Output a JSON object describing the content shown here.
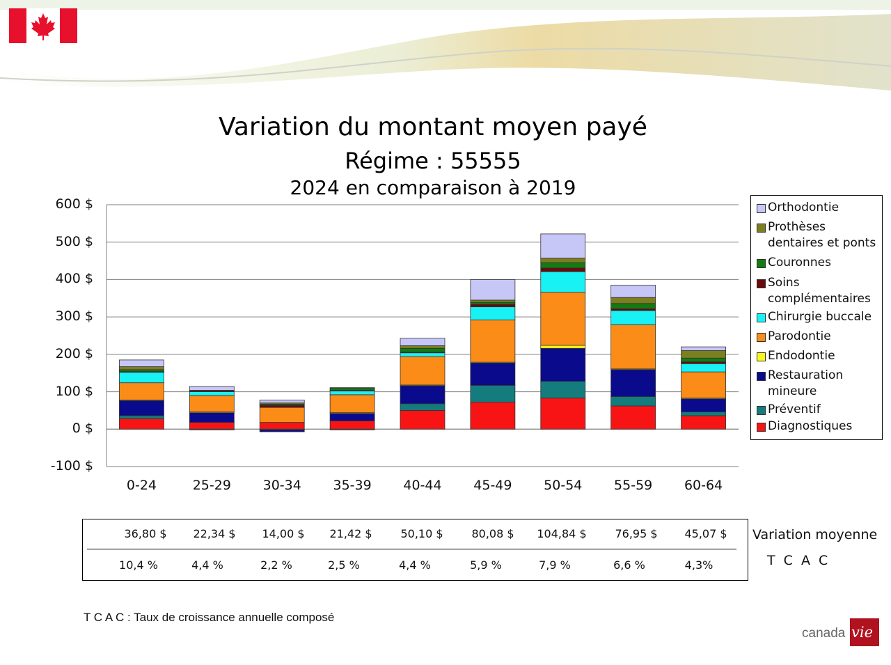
{
  "colors": {
    "Orthodontie": "#c6c6f7",
    "Prothèses dentaires et ponts": "#7b7f1d",
    "Couronnes": "#127c12",
    "Soins complémentaires": "#6b0a0a",
    "Chirurgie buccale": "#19f2f4",
    "Parodontie": "#fb8c18",
    "Endodontie": "#fbf718",
    "Restauration mineure": "#0a0a8c",
    "Préventif": "#147c7c",
    "Diagnostiques": "#f81414"
  },
  "chart_data": {
    "type": "bar",
    "stacked": true,
    "title": "Variation du montant moyen payé",
    "subtitle": "Régime : 55555",
    "subtitle2": "2024 en comparaison à 2019",
    "categories": [
      "0-24",
      "25-29",
      "30-34",
      "35-39",
      "40-44",
      "45-49",
      "50-54",
      "55-59",
      "60-64"
    ],
    "ylim": [
      -100,
      600
    ],
    "yticks": [
      "600 $",
      "500 $",
      "400 $",
      "300 $",
      "200 $",
      "100 $",
      "0 $",
      "-100 $"
    ],
    "grid": true,
    "legend_position": "right",
    "series": [
      {
        "name": "Diagnostiques",
        "values": [
          28,
          18,
          18,
          22,
          50,
          72,
          83,
          62,
          36
        ]
      },
      {
        "name": "Préventif",
        "values": [
          8,
          0,
          0,
          0,
          18,
          45,
          45,
          25,
          10
        ]
      },
      {
        "name": "Restauration mineure",
        "values": [
          40,
          26,
          0,
          20,
          48,
          60,
          88,
          72,
          35
        ]
      },
      {
        "name": "Endodontie",
        "values": [
          2,
          2,
          0,
          2,
          2,
          2,
          8,
          2,
          2
        ]
      },
      {
        "name": "Parodontie",
        "values": [
          46,
          44,
          40,
          48,
          76,
          113,
          142,
          118,
          70
        ]
      },
      {
        "name": "Chirurgie buccale",
        "values": [
          28,
          10,
          0,
          10,
          10,
          35,
          55,
          38,
          22
        ]
      },
      {
        "name": "Soins complémentaires",
        "values": [
          2,
          2,
          6,
          2,
          2,
          7,
          10,
          5,
          5
        ]
      },
      {
        "name": "Couronnes",
        "values": [
          5,
          0,
          3,
          5,
          10,
          5,
          14,
          14,
          10
        ]
      },
      {
        "name": "Prothèses dentaires et ponts",
        "values": [
          8,
          2,
          3,
          2,
          7,
          6,
          12,
          16,
          20
        ]
      },
      {
        "name": "Orthodontie",
        "values": [
          18,
          10,
          8,
          0,
          20,
          55,
          65,
          33,
          10
        ]
      }
    ],
    "negative_series": [
      {
        "name": "Préventif",
        "values": [
          0,
          -2,
          -2,
          -2,
          0,
          0,
          0,
          0,
          0
        ]
      },
      {
        "name": "Restauration mineure",
        "values": [
          0,
          0,
          -5,
          0,
          0,
          0,
          0,
          0,
          0
        ]
      }
    ]
  },
  "legend_items": [
    {
      "name": "Orthodontie",
      "label": "Orthodontie"
    },
    {
      "name": "Prothèses dentaires et ponts",
      "label": "Prothèses dentaires et ponts"
    },
    {
      "name": "Couronnes",
      "label": "Couronnes"
    },
    {
      "name": "Soins complémentaires",
      "label": "Soins complémentaires"
    },
    {
      "name": "Chirurgie buccale",
      "label": "Chirurgie buccale"
    },
    {
      "name": "Parodontie",
      "label": "Parodontie"
    },
    {
      "name": "Endodontie",
      "label": "Endodontie"
    },
    {
      "name": "Restauration mineure",
      "label": "Restauration mineure"
    },
    {
      "name": "Préventif",
      "label": "Préventif"
    },
    {
      "name": "Diagnostiques",
      "label": "Diagnostiques"
    }
  ],
  "table": {
    "row1_label": "Variation moyenne",
    "row2_label": "T C A C",
    "row1": [
      "36,80 $",
      "22,34 $",
      "14,00 $",
      "21,42 $",
      "50,10 $",
      "80,08 $",
      "104,84 $",
      "76,95 $",
      "45,07 $"
    ],
    "row2": [
      "10,4 %",
      "4,4 %",
      "2,2 %",
      "2,5 %",
      "4,4 %",
      "5,9 %",
      "7,9 %",
      "6,6 %",
      "4,3%"
    ]
  },
  "footnote": "T C A C : Taux de croissance annuelle composé",
  "logo": {
    "word": "canada",
    "mark": "vie"
  }
}
